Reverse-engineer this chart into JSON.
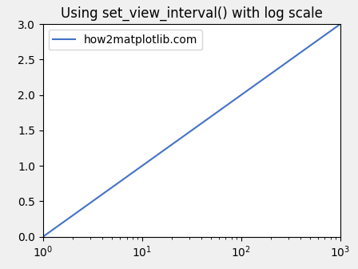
{
  "title": "Using set_view_interval() with log scale",
  "legend_label": "how2matplotlib.com",
  "line_color": "#4472c4",
  "x_scale": "log",
  "x_min": 1,
  "x_max": 1000,
  "y_min": 0.0,
  "y_max": 3.0,
  "num_points": 1000,
  "fig_facecolor": "#f0f0f0",
  "axes_facecolor": "#ffffff",
  "title_fontsize": 12
}
